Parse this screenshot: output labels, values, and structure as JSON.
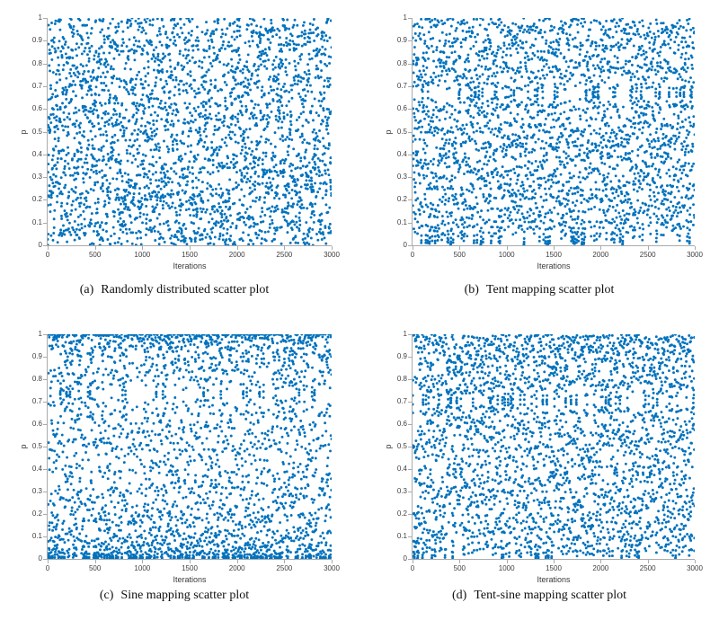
{
  "style": {
    "page_background": "#ffffff",
    "marker_color": "#0072BD",
    "marker_radius": 1.45,
    "axis_color": "#aaaaaa",
    "tick_label_color": "#404040",
    "axis_label_color": "#3a3a3a",
    "caption_color": "#111111"
  },
  "chart_data": [
    {
      "type": "scatter",
      "panel_label": "(a)",
      "caption": "Randomly distributed scatter plot",
      "map": "uniform",
      "seed": 20240501,
      "n_points": 3000,
      "xlabel": "Iterations",
      "ylabel": "p",
      "xlim": [
        0,
        3000
      ],
      "ylim": [
        0,
        1
      ],
      "xtick_values": [
        0,
        500,
        1000,
        1500,
        2000,
        2500,
        3000
      ],
      "xtick_labels": [
        "0",
        "500",
        "1000",
        "1500",
        "2000",
        "2500",
        "3000"
      ],
      "ytick_values": [
        0,
        0.1,
        0.2,
        0.3,
        0.4,
        0.5,
        0.6,
        0.7,
        0.8,
        0.9,
        1
      ],
      "ytick_labels": [
        "0",
        "0.1",
        "0.2",
        "0.3",
        "0.4",
        "0.5",
        "0.6",
        "0.7",
        "0.8",
        "0.9",
        "1"
      ],
      "grid": false,
      "legend": null
    },
    {
      "type": "scatter",
      "panel_label": "(b)",
      "caption": "Tent mapping scatter plot",
      "map": "tent",
      "seed": 7771,
      "n_points": 3000,
      "xlabel": "Iterations",
      "ylabel": "p",
      "xlim": [
        0,
        3000
      ],
      "ylim": [
        0,
        1
      ],
      "xtick_values": [
        0,
        500,
        1000,
        1500,
        2000,
        2500,
        3000
      ],
      "xtick_labels": [
        "0",
        "500",
        "1000",
        "1500",
        "2000",
        "2500",
        "3000"
      ],
      "ytick_values": [
        0,
        0.1,
        0.2,
        0.3,
        0.4,
        0.5,
        0.6,
        0.7,
        0.8,
        0.9,
        1
      ],
      "ytick_labels": [
        "0",
        "0.1",
        "0.2",
        "0.3",
        "0.4",
        "0.5",
        "0.6",
        "0.7",
        "0.8",
        "0.9",
        "1"
      ],
      "grid": false,
      "legend": null
    },
    {
      "type": "scatter",
      "panel_label": "(c)",
      "caption": "Sine mapping scatter plot",
      "map": "sine",
      "seed": 12345,
      "n_points": 3000,
      "xlabel": "Iterations",
      "ylabel": "p",
      "xlim": [
        0,
        3000
      ],
      "ylim": [
        0,
        1
      ],
      "xtick_values": [
        0,
        500,
        1000,
        1500,
        2000,
        2500,
        3000
      ],
      "xtick_labels": [
        "0",
        "500",
        "1000",
        "1500",
        "2000",
        "2500",
        "3000"
      ],
      "ytick_values": [
        0,
        0.1,
        0.2,
        0.3,
        0.4,
        0.5,
        0.6,
        0.7,
        0.8,
        0.9,
        1
      ],
      "ytick_labels": [
        "0",
        "0.1",
        "0.2",
        "0.3",
        "0.4",
        "0.5",
        "0.6",
        "0.7",
        "0.8",
        "0.9",
        "1"
      ],
      "grid": false,
      "legend": null
    },
    {
      "type": "scatter",
      "panel_label": "(d)",
      "caption": "Tent-sine mapping scatter plot",
      "map": "tent-sine",
      "seed": 424242,
      "n_points": 3000,
      "xlabel": "Iterations",
      "ylabel": "p",
      "xlim": [
        0,
        3000
      ],
      "ylim": [
        0,
        1
      ],
      "xtick_values": [
        0,
        500,
        1000,
        1500,
        2000,
        2500,
        3000
      ],
      "xtick_labels": [
        "0",
        "500",
        "1000",
        "1500",
        "2000",
        "2500",
        "3000"
      ],
      "ytick_values": [
        0,
        0.1,
        0.2,
        0.3,
        0.4,
        0.5,
        0.6,
        0.7,
        0.8,
        0.9,
        1
      ],
      "ytick_labels": [
        "0",
        "0.1",
        "0.2",
        "0.3",
        "0.4",
        "0.5",
        "0.6",
        "0.7",
        "0.8",
        "0.9",
        "1"
      ],
      "grid": false,
      "legend": null
    }
  ]
}
